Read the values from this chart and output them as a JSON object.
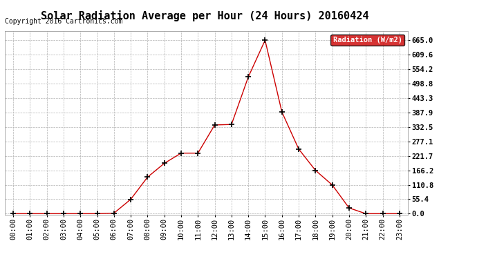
{
  "title": "Solar Radiation Average per Hour (24 Hours) 20160424",
  "copyright": "Copyright 2016 Cartronics.com",
  "legend_label": "Radiation (W/m2)",
  "hours": [
    "00:00",
    "01:00",
    "02:00",
    "03:00",
    "04:00",
    "05:00",
    "06:00",
    "07:00",
    "08:00",
    "09:00",
    "10:00",
    "11:00",
    "12:00",
    "13:00",
    "14:00",
    "15:00",
    "16:00",
    "17:00",
    "18:00",
    "19:00",
    "20:00",
    "21:00",
    "22:00",
    "23:00"
  ],
  "values": [
    0.0,
    0.0,
    0.0,
    0.0,
    0.0,
    0.0,
    2.0,
    55.0,
    140.0,
    193.0,
    232.0,
    232.0,
    340.0,
    342.0,
    524.0,
    665.0,
    390.0,
    248.0,
    166.0,
    110.0,
    22.0,
    0.0,
    0.0,
    0.0
  ],
  "line_color": "#cc0000",
  "marker": "+",
  "marker_color": "black",
  "marker_size": 6,
  "marker_linewidth": 1.2,
  "background_color": "#ffffff",
  "grid_color": "#b0b0b0",
  "yticks": [
    0.0,
    55.4,
    110.8,
    166.2,
    221.7,
    277.1,
    332.5,
    387.9,
    443.3,
    498.8,
    554.2,
    609.6,
    665.0
  ],
  "ylim": [
    -5.0,
    700.0
  ],
  "legend_bg": "#cc0000",
  "legend_text_color": "#ffffff",
  "title_fontsize": 11,
  "tick_fontsize": 7.5,
  "copyright_fontsize": 7
}
